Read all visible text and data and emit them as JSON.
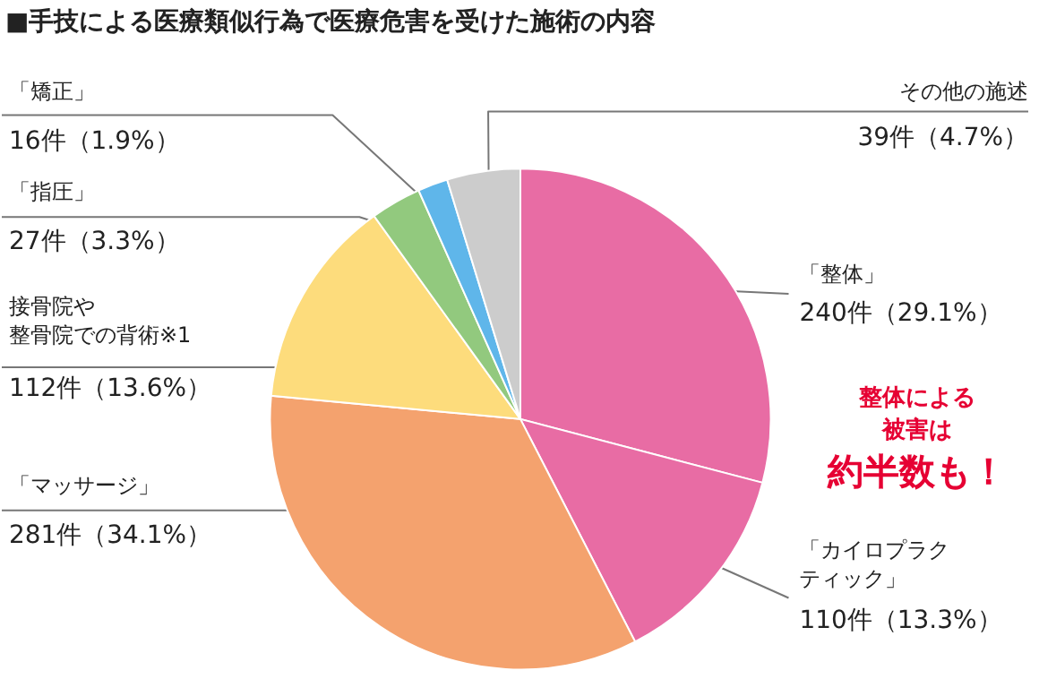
{
  "chart_data": {
    "type": "pie",
    "title": "■手技による医療類似行為で医療危害を受けた施術の内容",
    "categories": [
      "「整体」",
      "「カイロプラクティック」",
      "「マッサージ」",
      "接骨院や整骨院での背術※1",
      "「指圧」",
      "「矯正」",
      "その他の施述"
    ],
    "values": [
      240,
      110,
      281,
      112,
      27,
      16,
      39
    ],
    "value_labels": [
      "240件（29.1%）",
      "110件（13.3%）",
      "281件（34.1%）",
      "112件（13.6%）",
      "27件（3.3%）",
      "16件（1.9%）",
      "39件（4.7%）"
    ],
    "colors": [
      "#e86ca4",
      "#e86ca4",
      "#f4a26e",
      "#fddc7c",
      "#92c97e",
      "#5fb6ea",
      "#cccccc"
    ],
    "annotations": [
      "整体による被害は約半数も！"
    ],
    "legend": false
  }
}
